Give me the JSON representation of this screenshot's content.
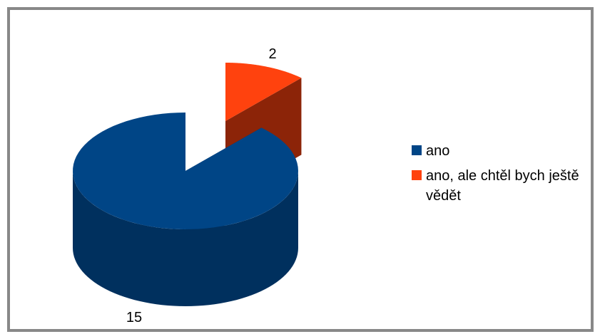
{
  "chart_data": {
    "type": "pie3d",
    "categories": [
      "ano",
      "ano, ale chtěl bych ještě vědět"
    ],
    "values": [
      15,
      2
    ],
    "colors": [
      "#004586",
      "#ff420e"
    ],
    "legend": "right"
  }
}
